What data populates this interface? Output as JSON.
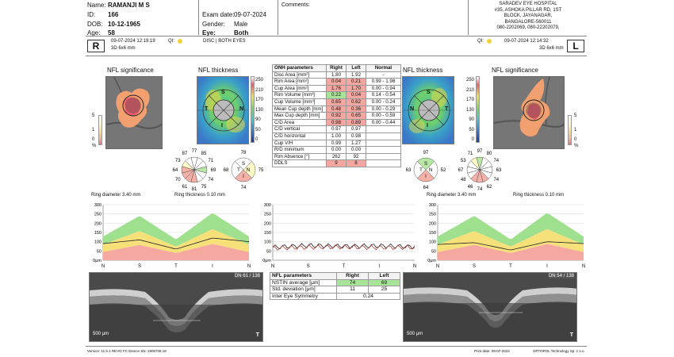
{
  "patient": {
    "name_label": "Name:",
    "name": "RAMANJI M S",
    "id_label": "ID:",
    "id": "166",
    "dob_label": "DOB:",
    "dob": "10-12-1965",
    "age_label": "Age:",
    "age": "58",
    "exam_label": "Exam date:",
    "exam_date": "09-07-2024",
    "gender_label": "Gender:",
    "gender": "Male",
    "eye_label": "Eye:",
    "eye": "Both",
    "comments_label": "Comments:"
  },
  "hospital": {
    "line1": "SARADEV EYE HOSPITAL",
    "line2": "#35, ASHOKA PILLAR RD, 1ST",
    "line3": "BLOCK, JAYANAGAR,",
    "line4": "BANGALORE-560011",
    "line5": "080-2202069, 080-22202079,"
  },
  "scan_info": {
    "right_letter": "R",
    "left_letter": "L",
    "right_datetime": "09-07-2024 12:19:19",
    "left_datetime": "09-07-2024 12:14:32",
    "qi_label": "QI:",
    "right_mode": "3D 6x6 mm",
    "left_mode": "3D 6x6 mm",
    "center_mode": "DISC | BOTH EYES"
  },
  "panels": {
    "nfl_significance": "NFL significance",
    "nfl_thickness": "NFL thickness",
    "ring_diameter": "Ring diameter 3.40 mm",
    "ring_thickness": "Ring thickness 0.10 mm",
    "um": "μm",
    "pct": "%",
    "scale_500": "500 μm",
    "dn_right": "DN 61 / 138",
    "dn_left": "DN 54 / 138",
    "t_letter": "T"
  },
  "sig_scale": [
    "5",
    "1",
    "0"
  ],
  "thick_scale": [
    "250",
    "210",
    "170",
    "130",
    "90",
    "50",
    "0"
  ],
  "sector_labels": {
    "s": "S",
    "i": "I",
    "n": "N",
    "t": "T"
  },
  "clock_right": [
    "77",
    "85",
    "71",
    "69",
    "74",
    "75",
    "81",
    "61",
    "70",
    "64",
    "73",
    "87"
  ],
  "clock_left": [
    "97",
    "80",
    "74",
    "63",
    "74",
    "62",
    "74",
    "46",
    "48",
    "67",
    "53",
    "71"
  ],
  "quad_right": {
    "s": "78",
    "t": "68",
    "n": "75",
    "i": "74"
  },
  "quad_left": {
    "s": "97",
    "t": "63",
    "n": "52",
    "i": "64"
  },
  "onh": {
    "headers": [
      "ONH parameters",
      "Right",
      "Left",
      "Normal"
    ],
    "rows": [
      [
        "Disc Area [mm²]",
        "1.80",
        "1.92",
        "-"
      ],
      [
        "Rim Area [mm²]",
        "0.04",
        "0.21",
        "0.99 - 1.98"
      ],
      [
        "Cup Area [mm²]",
        "1.76",
        "1.70",
        "0.00 - 0.94"
      ],
      [
        "Rim Volume [mm³]",
        "0.22",
        "0.04",
        "0.14 - 0.54"
      ],
      [
        "Cup Volume [mm³]",
        "0.65",
        "0.62",
        "0.00 - 0.24"
      ],
      [
        "Mean Cup depth [mm]",
        "0.48",
        "0.36",
        "0.00 - 0.29"
      ],
      [
        "Max Cup depth [mm]",
        "0.92",
        "0.65",
        "0.00 - 0.59"
      ],
      [
        "C/D Area",
        "0.98",
        "0.89",
        "0.00 - 0.44"
      ],
      [
        "C/D vertical",
        "0.97",
        "0.97",
        ""
      ],
      [
        "C/D horizontal",
        "1.00",
        "0.98",
        ""
      ],
      [
        "Cup V/H",
        "0.99",
        "1.27",
        ""
      ],
      [
        "R/D minimum",
        "0.00",
        "0.00",
        ""
      ],
      [
        "Rim Absence [°]",
        "262",
        "92",
        ""
      ],
      [
        "DDLS",
        "9",
        "8",
        ""
      ]
    ],
    "highlight": [
      [
        "",
        "",
        ""
      ],
      [
        "red",
        "red",
        ""
      ],
      [
        "red",
        "red",
        ""
      ],
      [
        "grn",
        "red",
        ""
      ],
      [
        "red",
        "red",
        ""
      ],
      [
        "red",
        "red",
        ""
      ],
      [
        "red",
        "red",
        ""
      ],
      [
        "red",
        "red",
        ""
      ],
      [
        "",
        "",
        ""
      ],
      [
        "",
        "",
        ""
      ],
      [
        "",
        "",
        ""
      ],
      [
        "",
        "",
        ""
      ],
      [
        "",
        "",
        ""
      ],
      [
        "red",
        "red",
        ""
      ]
    ]
  },
  "nfl_table": {
    "headers": [
      "NFL parameters",
      "Right",
      "Left"
    ],
    "rows": [
      [
        "NSTIN average [μm]",
        "74",
        "69"
      ],
      [
        "Std. deviation [μm]",
        "11",
        "25"
      ]
    ],
    "symmetry_label": "Inter Eye Symmetry",
    "symmetry_value": "0.24"
  },
  "charts": {
    "y_ticks": [
      "300",
      "250",
      "200",
      "150",
      "100",
      "50",
      "0μm"
    ],
    "x_ticks": [
      "N",
      "S",
      "T",
      "I",
      "N"
    ]
  },
  "footer": {
    "left": "Version: 11.5.1    REVO FC    Device SN: 1906708.18",
    "print_date": "Print date: 09-07-2024",
    "company": "OPTOPOL Technology Sp. z o.o."
  },
  "chart_data": [
    {
      "type": "line",
      "title": "",
      "x": [
        "N",
        "S",
        "T",
        "I",
        "N"
      ],
      "series": [
        {
          "values": [
            80,
            150,
            70,
            160,
            80
          ]
        },
        {
          "values": [
            90,
            110,
            60,
            120,
            100
          ]
        }
      ],
      "ylim": [
        0,
        300
      ]
    },
    {
      "type": "line",
      "title": "",
      "x": [
        "N",
        "S",
        "T",
        "I",
        "N"
      ],
      "series": [
        {
          "values": [
            70,
            80,
            75,
            78,
            72
          ]
        },
        {
          "values": [
            65,
            70,
            72,
            68,
            70
          ]
        }
      ],
      "ylim": [
        0,
        300
      ]
    },
    {
      "type": "line",
      "title": "",
      "x": [
        "N",
        "S",
        "T",
        "I",
        "N"
      ],
      "series": [
        {
          "values": [
            80,
            150,
            70,
            160,
            80
          ]
        },
        {
          "values": [
            85,
            95,
            55,
            100,
            90
          ]
        }
      ],
      "ylim": [
        0,
        300
      ]
    }
  ]
}
